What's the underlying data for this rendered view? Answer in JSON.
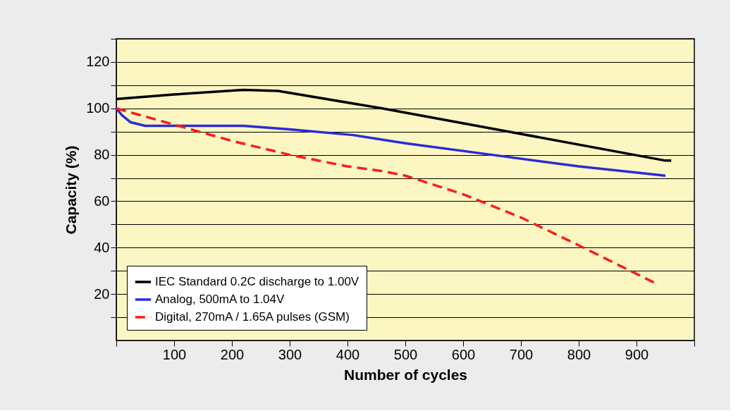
{
  "chart_data": {
    "type": "line",
    "xlabel": "Number of cycles",
    "ylabel": "Capacity (%)",
    "xlim": [
      0,
      1000
    ],
    "xticks": [
      {
        "value": 0,
        "label": null
      },
      100,
      200,
      300,
      400,
      500,
      600,
      700,
      800,
      900,
      {
        "value": 1000,
        "label": null
      }
    ],
    "ylim": [
      0,
      130
    ],
    "yticks": [
      {
        "value": 10,
        "label": null
      },
      20,
      {
        "value": 30,
        "label": null
      },
      40,
      {
        "value": 50,
        "label": null
      },
      60,
      {
        "value": 70,
        "label": null
      },
      80,
      {
        "value": 90,
        "label": null
      },
      100,
      {
        "value": 110,
        "label": null
      },
      120,
      {
        "value": 130,
        "label": null
      }
    ],
    "grid": "y",
    "legend": "bottom left",
    "marker": "none",
    "series": [
      {
        "name": "IEC Standard 0.2C discharge to 1.00V",
        "color": "#000000",
        "line_style": "solid",
        "x": [
          0,
          100,
          220,
          280,
          460,
          700,
          950,
          960
        ],
        "values": [
          104,
          106,
          108,
          107.5,
          100,
          89,
          77.5,
          77.5
        ]
      },
      {
        "name": "Analog, 500mA to 1.04V",
        "color": "#2b2bd9",
        "line_style": "solid",
        "x": [
          0,
          10,
          25,
          50,
          100,
          220,
          300,
          410,
          500,
          650,
          800,
          950
        ],
        "values": [
          100,
          97,
          94,
          92.5,
          92.5,
          92.5,
          91,
          88.5,
          85,
          80,
          75,
          71
        ]
      },
      {
        "name": "Digital, 270mA / 1.65A pulses (GSM)",
        "color": "#ff1a1a",
        "line_style": "dashed",
        "x": [
          0,
          100,
          200,
          300,
          400,
          460,
          500,
          600,
          700,
          800,
          930
        ],
        "values": [
          100,
          93,
          86,
          80,
          75,
          73,
          71,
          63,
          53,
          41,
          25
        ]
      }
    ]
  }
}
